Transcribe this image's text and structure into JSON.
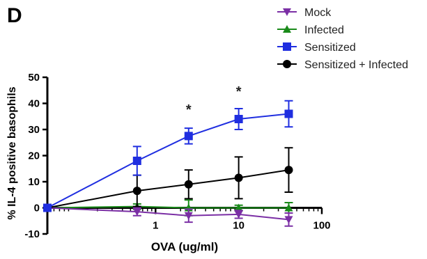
{
  "panel_label": "D",
  "chart_data": {
    "type": "line",
    "title": "",
    "xlabel": "OVA (ug/ml)",
    "ylabel": "% IL-4 positive basophils",
    "x_scale": "log",
    "xlim": [
      0.05,
      100
    ],
    "x_ticks": [
      1,
      10,
      100
    ],
    "x_tick_labels": [
      "1",
      "10",
      "100"
    ],
    "ylim": [
      -10,
      50
    ],
    "y_ticks": [
      -10,
      0,
      10,
      20,
      30,
      40,
      50
    ],
    "y_tick_labels": [
      "-10",
      "0",
      "10",
      "20",
      "30",
      "40",
      "50"
    ],
    "grid": false,
    "legend_position": "top-right",
    "x": [
      0.05,
      0.6,
      2.5,
      10,
      40
    ],
    "series": [
      {
        "name": "Mock",
        "color": "#7b2fa5",
        "marker": "triangle-down",
        "values": [
          0,
          -1.5,
          -3,
          -2.5,
          -4.5
        ],
        "errors": [
          0,
          1.5,
          2.5,
          1.5,
          2.5
        ]
      },
      {
        "name": "Infected",
        "color": "#1a8a1a",
        "marker": "triangle-up",
        "values": [
          0,
          0.5,
          0,
          0,
          0
        ],
        "errors": [
          0,
          1,
          3,
          1,
          2
        ]
      },
      {
        "name": "Sensitized",
        "color": "#1f2ee0",
        "marker": "square",
        "values": [
          0,
          18,
          27.5,
          34,
          36
        ],
        "errors": [
          0,
          5.5,
          3,
          4,
          5
        ]
      },
      {
        "name": "Sensitized + Infected",
        "color": "#000000",
        "marker": "circle",
        "values": [
          0,
          6.5,
          9,
          11.5,
          14.5
        ],
        "errors": [
          0,
          6,
          5.5,
          8,
          8.5
        ]
      }
    ],
    "annotations": [
      {
        "text": "*",
        "x": 2.5,
        "y": 38
      },
      {
        "text": "*",
        "x": 10,
        "y": 45
      }
    ]
  }
}
